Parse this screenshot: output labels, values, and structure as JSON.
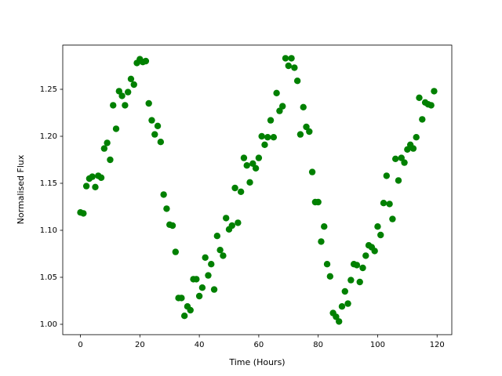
{
  "chart_data": {
    "type": "scatter",
    "x_label": "Time (Hours)",
    "y_label": "Normalised Flux",
    "color": "#008000",
    "x": [
      0,
      1,
      2,
      3,
      4,
      5,
      6,
      7,
      8,
      9,
      10,
      11,
      12,
      13,
      14,
      15,
      16,
      17,
      18,
      19,
      20,
      21,
      22,
      23,
      24,
      25,
      26,
      27,
      28,
      29,
      30,
      31,
      32,
      33,
      34,
      35,
      36,
      37,
      38,
      39,
      40,
      41,
      42,
      43,
      44,
      45,
      46,
      47,
      48,
      49,
      50,
      51,
      52,
      53,
      54,
      55,
      56,
      57,
      58,
      59,
      60,
      61,
      62,
      63,
      64,
      65,
      66,
      67,
      68,
      69,
      70,
      71,
      72,
      73,
      74,
      75,
      76,
      77,
      78,
      79,
      80,
      81,
      82,
      83,
      84,
      85,
      86,
      87,
      88,
      89,
      90,
      91,
      92,
      93,
      94,
      95,
      96,
      97,
      98,
      99,
      100,
      101,
      102,
      103,
      104,
      105,
      106,
      107,
      108,
      109,
      110,
      111,
      112,
      113,
      114,
      115,
      116,
      117,
      118,
      119
    ],
    "values": [
      1.119,
      1.118,
      1.147,
      1.155,
      1.157,
      1.146,
      1.158,
      1.156,
      1.187,
      1.193,
      1.175,
      1.233,
      1.208,
      1.248,
      1.243,
      1.233,
      1.247,
      1.261,
      1.255,
      1.278,
      1.282,
      1.279,
      1.28,
      1.235,
      1.217,
      1.202,
      1.211,
      1.194,
      1.138,
      1.123,
      1.106,
      1.105,
      1.077,
      1.028,
      1.028,
      1.009,
      1.019,
      1.015,
      1.048,
      1.048,
      1.03,
      1.039,
      1.071,
      1.052,
      1.064,
      1.037,
      1.094,
      1.079,
      1.073,
      1.113,
      1.101,
      1.105,
      1.145,
      1.108,
      1.141,
      1.177,
      1.169,
      1.151,
      1.171,
      1.166,
      1.177,
      1.2,
      1.191,
      1.199,
      1.217,
      1.199,
      1.246,
      1.227,
      1.232,
      1.283,
      1.275,
      1.283,
      1.273,
      1.259,
      1.202,
      1.231,
      1.21,
      1.205,
      1.162,
      1.13,
      1.13,
      1.088,
      1.104,
      1.064,
      1.051,
      1.012,
      1.008,
      1.003,
      1.019,
      1.035,
      1.022,
      1.047,
      1.064,
      1.063,
      1.045,
      1.06,
      1.073,
      1.084,
      1.082,
      1.078,
      1.104,
      1.095,
      1.129,
      1.158,
      1.128,
      1.112,
      1.176,
      1.153,
      1.177,
      1.172,
      1.186,
      1.191,
      1.187,
      1.199,
      1.241,
      1.218,
      1.236,
      1.234,
      1.233,
      1.248
    ],
    "xlim": [
      -5.95,
      124.95
    ],
    "xticks": [
      0,
      20,
      40,
      60,
      80,
      100,
      120
    ],
    "ylim": [
      0.989,
      1.297
    ],
    "yticks": [
      {
        "value": 1.0,
        "label": "1.00"
      },
      {
        "value": 1.05,
        "label": "1.05"
      },
      {
        "value": 1.1,
        "label": "1.10"
      },
      {
        "value": 1.15,
        "label": "1.15"
      },
      {
        "value": 1.2,
        "label": "1.20"
      },
      {
        "value": 1.25,
        "label": "1.25"
      }
    ]
  }
}
